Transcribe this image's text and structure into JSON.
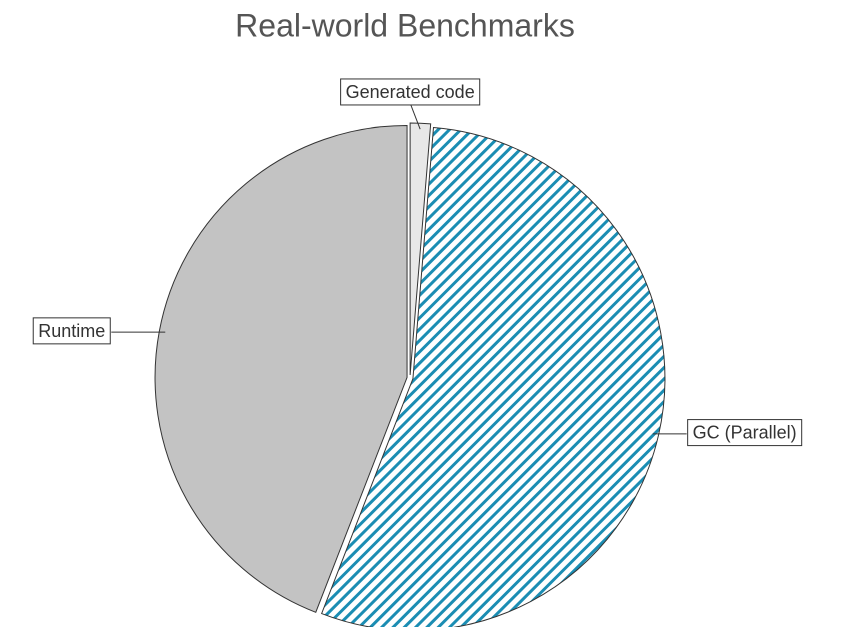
{
  "chart_data": {
    "type": "pie",
    "title": "Real-world Benchmarks",
    "categories": [
      "Generated code",
      "GC (Parallel)",
      "Runtime"
    ],
    "values": [
      1.3,
      54.6,
      44.1
    ],
    "colors": [
      "#e8e8e8",
      "#1b8db3",
      "#c3c3c3"
    ],
    "hatch": [
      false,
      true,
      false
    ]
  }
}
